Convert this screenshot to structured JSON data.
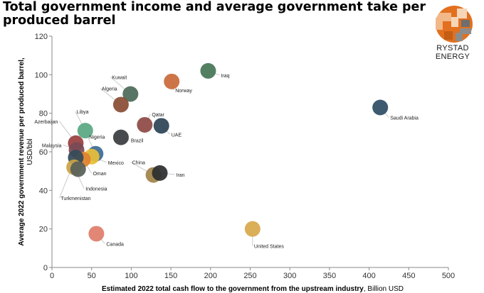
{
  "title": "Total government income and average government take per produced barrel",
  "brand": {
    "name": "RYSTAD ENERGY",
    "logo_icon": "rystad-logo-icon",
    "colors": {
      "orange": "#e2701f",
      "grey": "#8c8c8c",
      "light": "#f2b888"
    }
  },
  "chart_data": {
    "type": "scatter",
    "xlabel": "Estimated 2022 total cash flow to the government from the upstream industry",
    "xlabel_unit": "Billion USD",
    "ylabel": "Average 2022 government revenue per produced barrel,",
    "ylabel_unit": "USD/bbl",
    "xlim": [
      0,
      500
    ],
    "ylim": [
      0,
      120
    ],
    "xticks": [
      0,
      50,
      100,
      150,
      200,
      250,
      300,
      350,
      400,
      450,
      500
    ],
    "yticks": [
      0,
      20,
      40,
      60,
      80,
      100,
      120
    ],
    "grid": false,
    "legend": "none",
    "points": [
      {
        "label": "Iraq",
        "x": 197,
        "y": 102,
        "color": "#477656"
      },
      {
        "label": "Norway",
        "x": 151,
        "y": 96.5,
        "color": "#c96a3a"
      },
      {
        "label": "Kuwait",
        "x": 99,
        "y": 90,
        "color": "#4c6a5a"
      },
      {
        "label": "Algeria",
        "x": 87,
        "y": 84.5,
        "color": "#8a4e35"
      },
      {
        "label": "Saudi Arabia",
        "x": 414,
        "y": 83,
        "color": "#2f4e66"
      },
      {
        "label": "Qatar",
        "x": 117,
        "y": 74,
        "color": "#8e4a45"
      },
      {
        "label": "UAE",
        "x": 138,
        "y": 73.5,
        "color": "#2d4456"
      },
      {
        "label": "Libya",
        "x": 42,
        "y": 71,
        "color": "#5aa882"
      },
      {
        "label": "Brazil",
        "x": 87,
        "y": 67.5,
        "color": "#3a3d3f"
      },
      {
        "label": "Azerbaijan",
        "x": 30,
        "y": 64.5,
        "color": "#9a4040"
      },
      {
        "label": "Malaysia",
        "x": 31,
        "y": 61,
        "color": "#7a4a55"
      },
      {
        "label": "Nigeria",
        "x": 55,
        "y": 59,
        "color": "#3e6d95"
      },
      {
        "label": "Mexico",
        "x": 50,
        "y": 57.5,
        "color": "#e8bf38"
      },
      {
        "label": "Oman",
        "x": 39,
        "y": 56,
        "color": "#e0812f"
      },
      {
        "label": "Turkmenistan",
        "x": 30,
        "y": 57,
        "color": "#344a58"
      },
      {
        "label": "Indonesia",
        "x": 28,
        "y": 52,
        "color": "#c9a243"
      },
      {
        "label": "",
        "x": 33,
        "y": 51,
        "color": "#58605a"
      },
      {
        "label": "China",
        "x": 128,
        "y": 48,
        "color": "#a08348"
      },
      {
        "label": "Iran",
        "x": 136,
        "y": 49,
        "color": "#2c2e2f"
      },
      {
        "label": "United States",
        "x": 253,
        "y": 20,
        "color": "#d8a84b"
      },
      {
        "label": "Canada",
        "x": 56,
        "y": 17.5,
        "color": "#e07d6c"
      }
    ]
  }
}
